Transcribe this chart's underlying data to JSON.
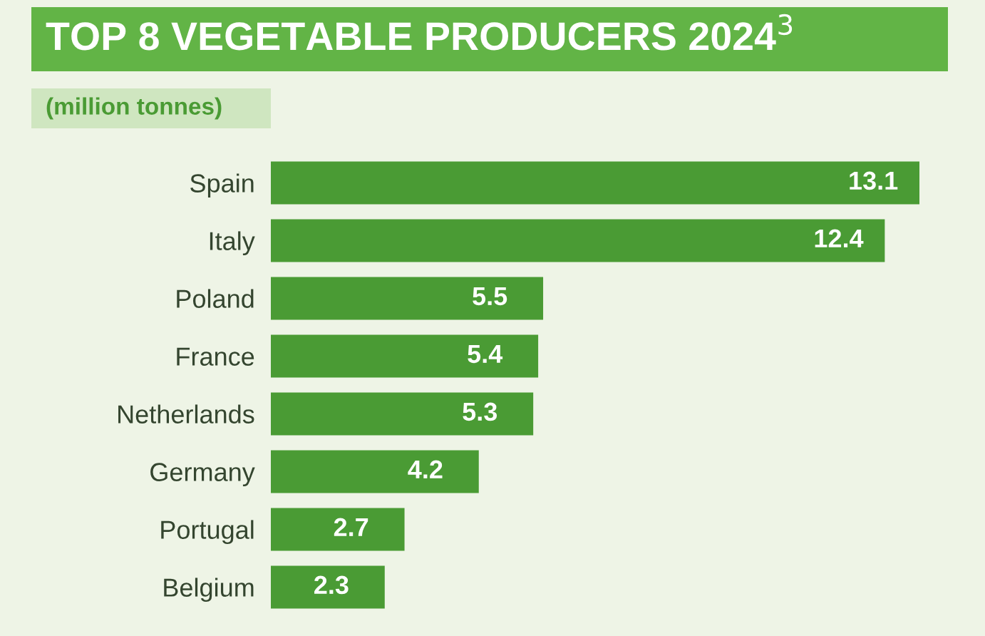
{
  "chart_data": {
    "type": "bar",
    "orientation": "horizontal",
    "title": "TOP 8 VEGETABLE PRODUCERS 2024$^{3}$",
    "subtitle": "(million tonnes)",
    "categories": [
      "Spain",
      "Italy",
      "Poland",
      "France",
      "Netherlands",
      "Germany",
      "Portugal",
      "Belgium"
    ],
    "values": [
      13.1,
      12.4,
      5.5,
      5.4,
      5.3,
      4.2,
      2.7,
      2.3
    ],
    "color": "#4a9b34",
    "data_labels": true,
    "grid": false,
    "legend": false,
    "tick_labels": "y"
  }
}
